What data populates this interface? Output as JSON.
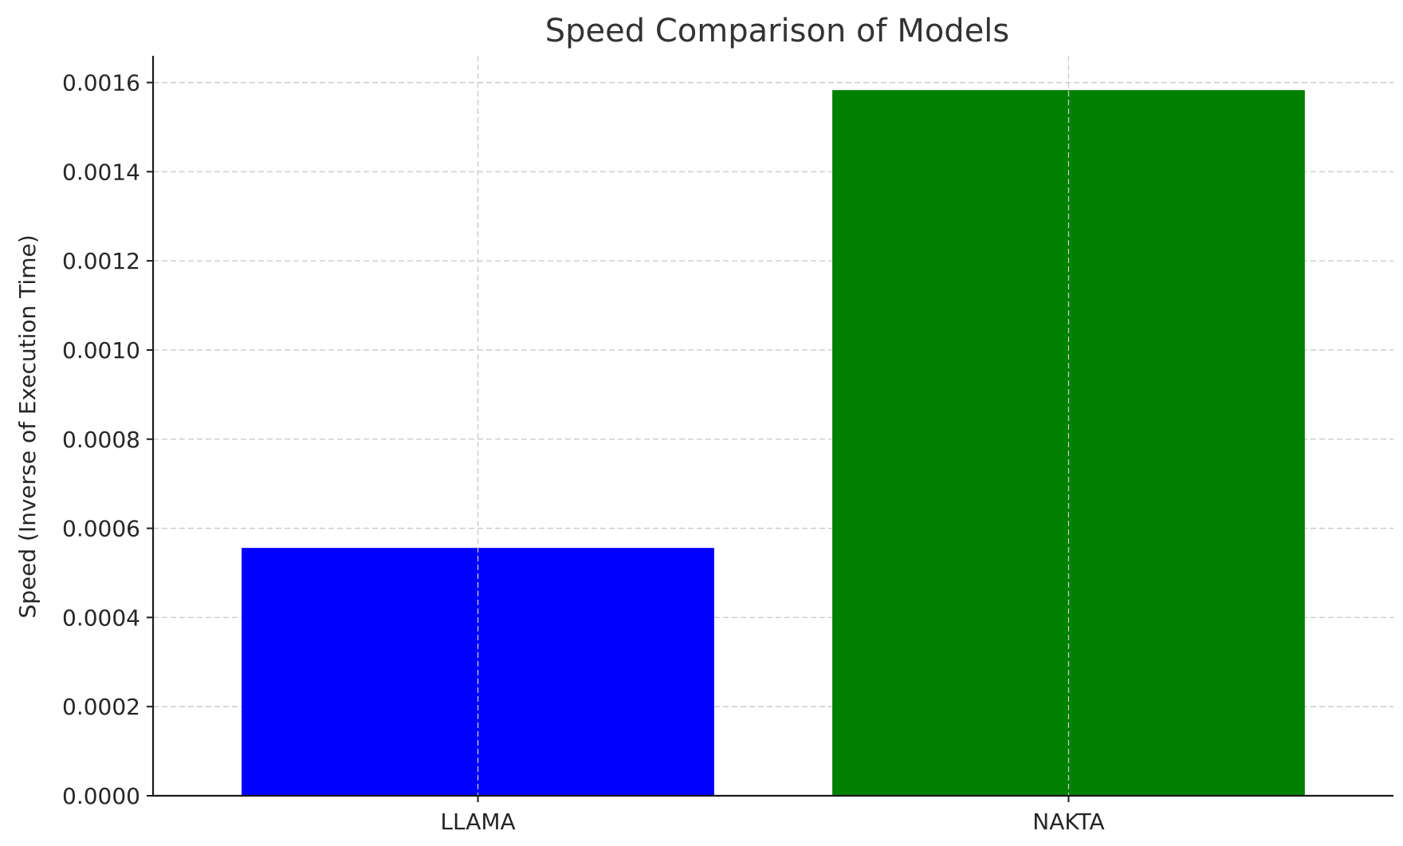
{
  "chart_data": {
    "type": "bar",
    "title": "Speed Comparison of Models",
    "xlabel": "",
    "ylabel": "Speed (Inverse of Execution Time)",
    "categories": [
      "LLAMA",
      "NAKTA"
    ],
    "values": [
      0.000556,
      0.001583
    ],
    "colors": [
      "#0000ff",
      "#008000"
    ],
    "ylim": [
      0,
      0.00166
    ],
    "yticks": [
      0,
      0.0002,
      0.0004,
      0.0006,
      0.0008,
      0.001,
      0.0012,
      0.0014,
      0.0016
    ],
    "ytick_labels": [
      "0.0000",
      "0.0002",
      "0.0004",
      "0.0006",
      "0.0008",
      "0.0010",
      "0.0012",
      "0.0014",
      "0.0016"
    ],
    "grid": true
  }
}
